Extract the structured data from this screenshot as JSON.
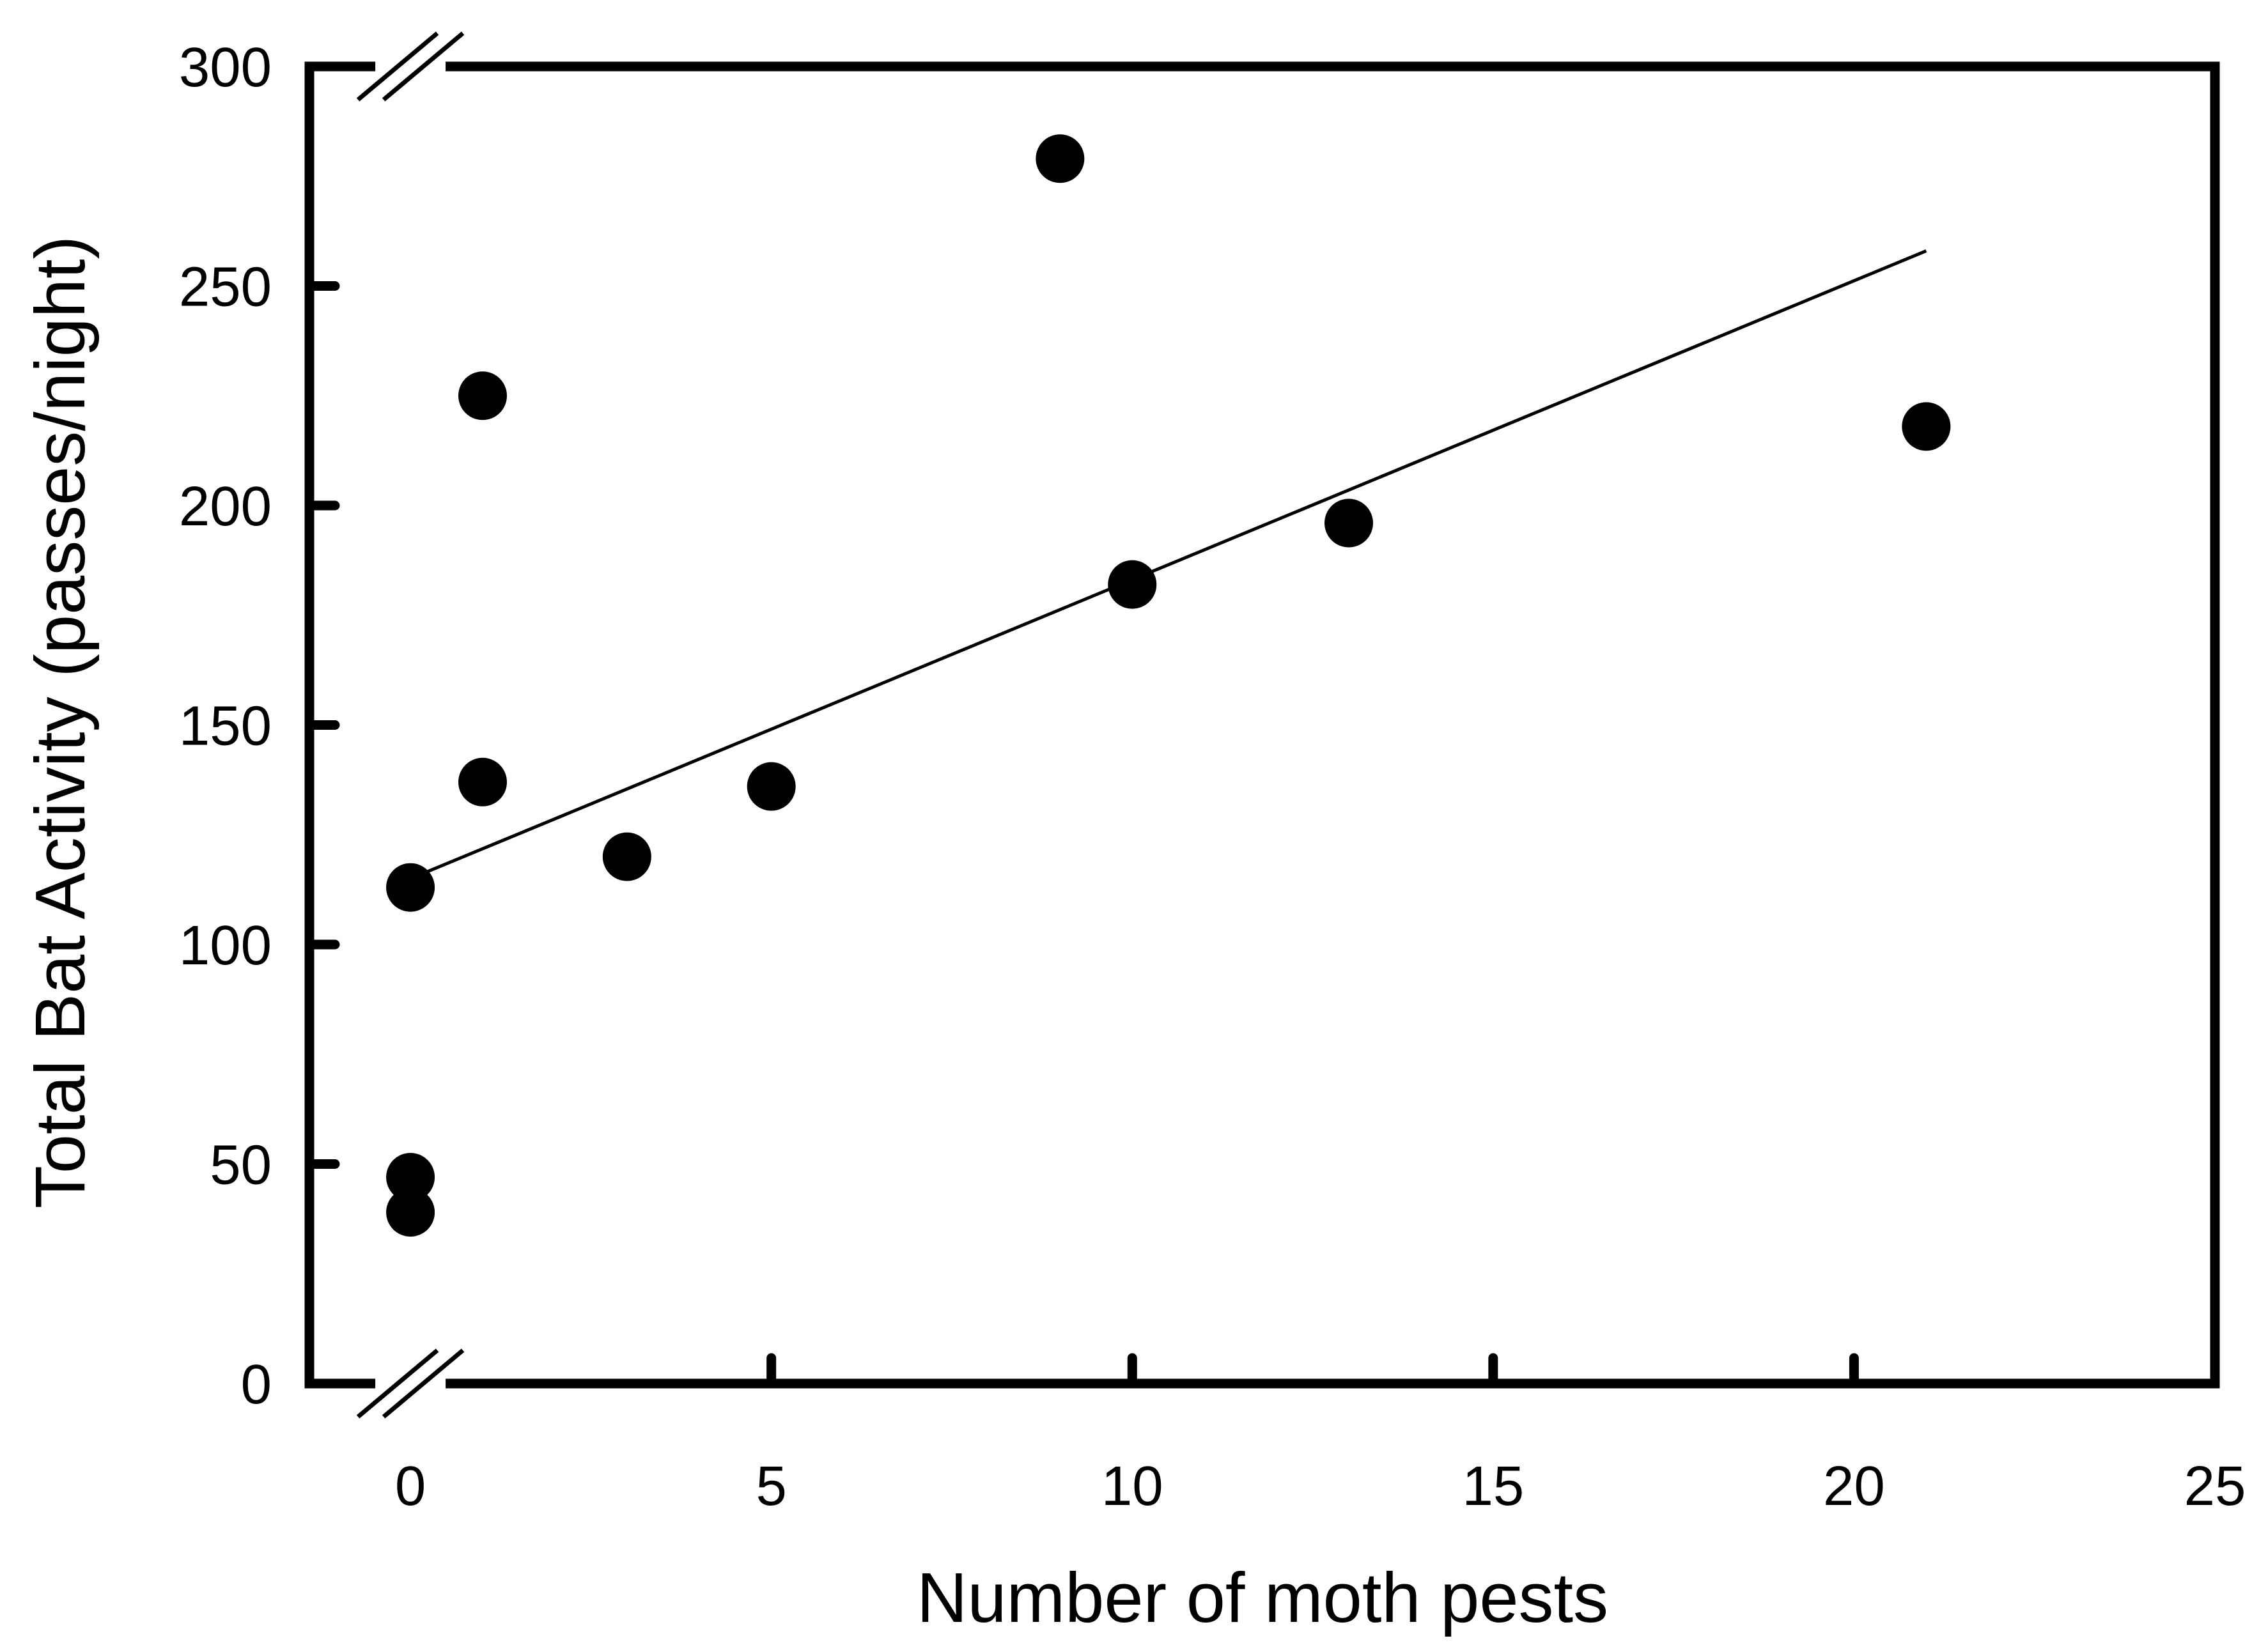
{
  "chart_data": {
    "type": "scatter",
    "title": "",
    "xlabel": "Number of moth pests",
    "ylabel": "Total Bat Activity (passes/night)",
    "xlim": [
      -1.4,
      25
    ],
    "ylim": [
      0,
      300
    ],
    "x_ticks": [
      0,
      5,
      10,
      15,
      20,
      25
    ],
    "y_ticks": [
      0,
      50,
      100,
      150,
      200,
      250,
      300
    ],
    "x_tick_labels": [
      "0",
      "5",
      "10",
      "15",
      "20",
      "25"
    ],
    "y_tick_labels": [
      "0",
      "50",
      "100",
      "150",
      "200",
      "250",
      "300"
    ],
    "axis_breaks": [
      "x-axis near origin",
      "y-axis near origin",
      "top-left corner"
    ],
    "grid": false,
    "legend": "none",
    "series": [
      {
        "points": [
          {
            "x": 0,
            "y": 113
          },
          {
            "x": 0,
            "y": 47
          },
          {
            "x": 0,
            "y": 39
          },
          {
            "x": 1,
            "y": 225
          },
          {
            "x": 1,
            "y": 137
          },
          {
            "x": 3,
            "y": 120
          },
          {
            "x": 5,
            "y": 136
          },
          {
            "x": 9,
            "y": 279
          },
          {
            "x": 10,
            "y": 182
          },
          {
            "x": 13,
            "y": 196
          },
          {
            "x": 21,
            "y": 218
          }
        ]
      }
    ],
    "trendline": {
      "x": [
        0,
        21
      ],
      "y": [
        115,
        258
      ]
    },
    "colors": {
      "marker": "#000000",
      "axis": "#000000",
      "line": "#000000"
    }
  }
}
